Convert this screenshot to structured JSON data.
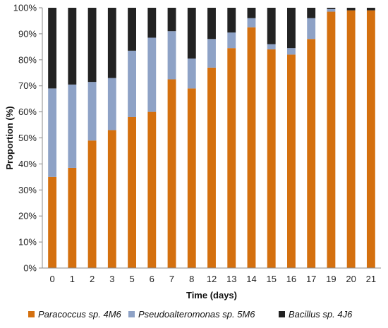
{
  "chart_data": {
    "type": "bar",
    "stacked": true,
    "categories": [
      "0",
      "1",
      "2",
      "3",
      "5",
      "6",
      "7",
      "8",
      "12",
      "13",
      "14",
      "15",
      "16",
      "17",
      "19",
      "20",
      "21"
    ],
    "xlabel": "Time (days)",
    "ylabel": "Proportion (%)",
    "ylim": [
      0,
      100
    ],
    "yticks": [
      "0%",
      "10%",
      "20%",
      "30%",
      "40%",
      "50%",
      "60%",
      "70%",
      "80%",
      "90%",
      "100%"
    ],
    "grid": false,
    "legend_position": "bottom",
    "series": [
      {
        "name": "Paracoccus sp. 4M6",
        "color": "#D4700F",
        "values": [
          35,
          38.5,
          49,
          53,
          58,
          60,
          72.5,
          69,
          77,
          84.5,
          92.5,
          84,
          82,
          88,
          98.5,
          99,
          99
        ]
      },
      {
        "name": "Pseudoalteromonas sp. 5M6",
        "color": "#8EA2C6",
        "values": [
          34,
          32,
          22.5,
          20,
          25.5,
          28.5,
          18.5,
          11.5,
          11,
          6,
          3.5,
          2,
          2.5,
          8,
          1,
          0,
          0
        ]
      },
      {
        "name": "Bacillus sp. 4J6",
        "color": "#222222",
        "values": [
          31,
          29.5,
          28.5,
          27,
          16.5,
          11.5,
          9,
          19.5,
          12,
          9.5,
          4,
          14,
          15.5,
          4,
          0.5,
          1,
          1
        ]
      }
    ]
  }
}
